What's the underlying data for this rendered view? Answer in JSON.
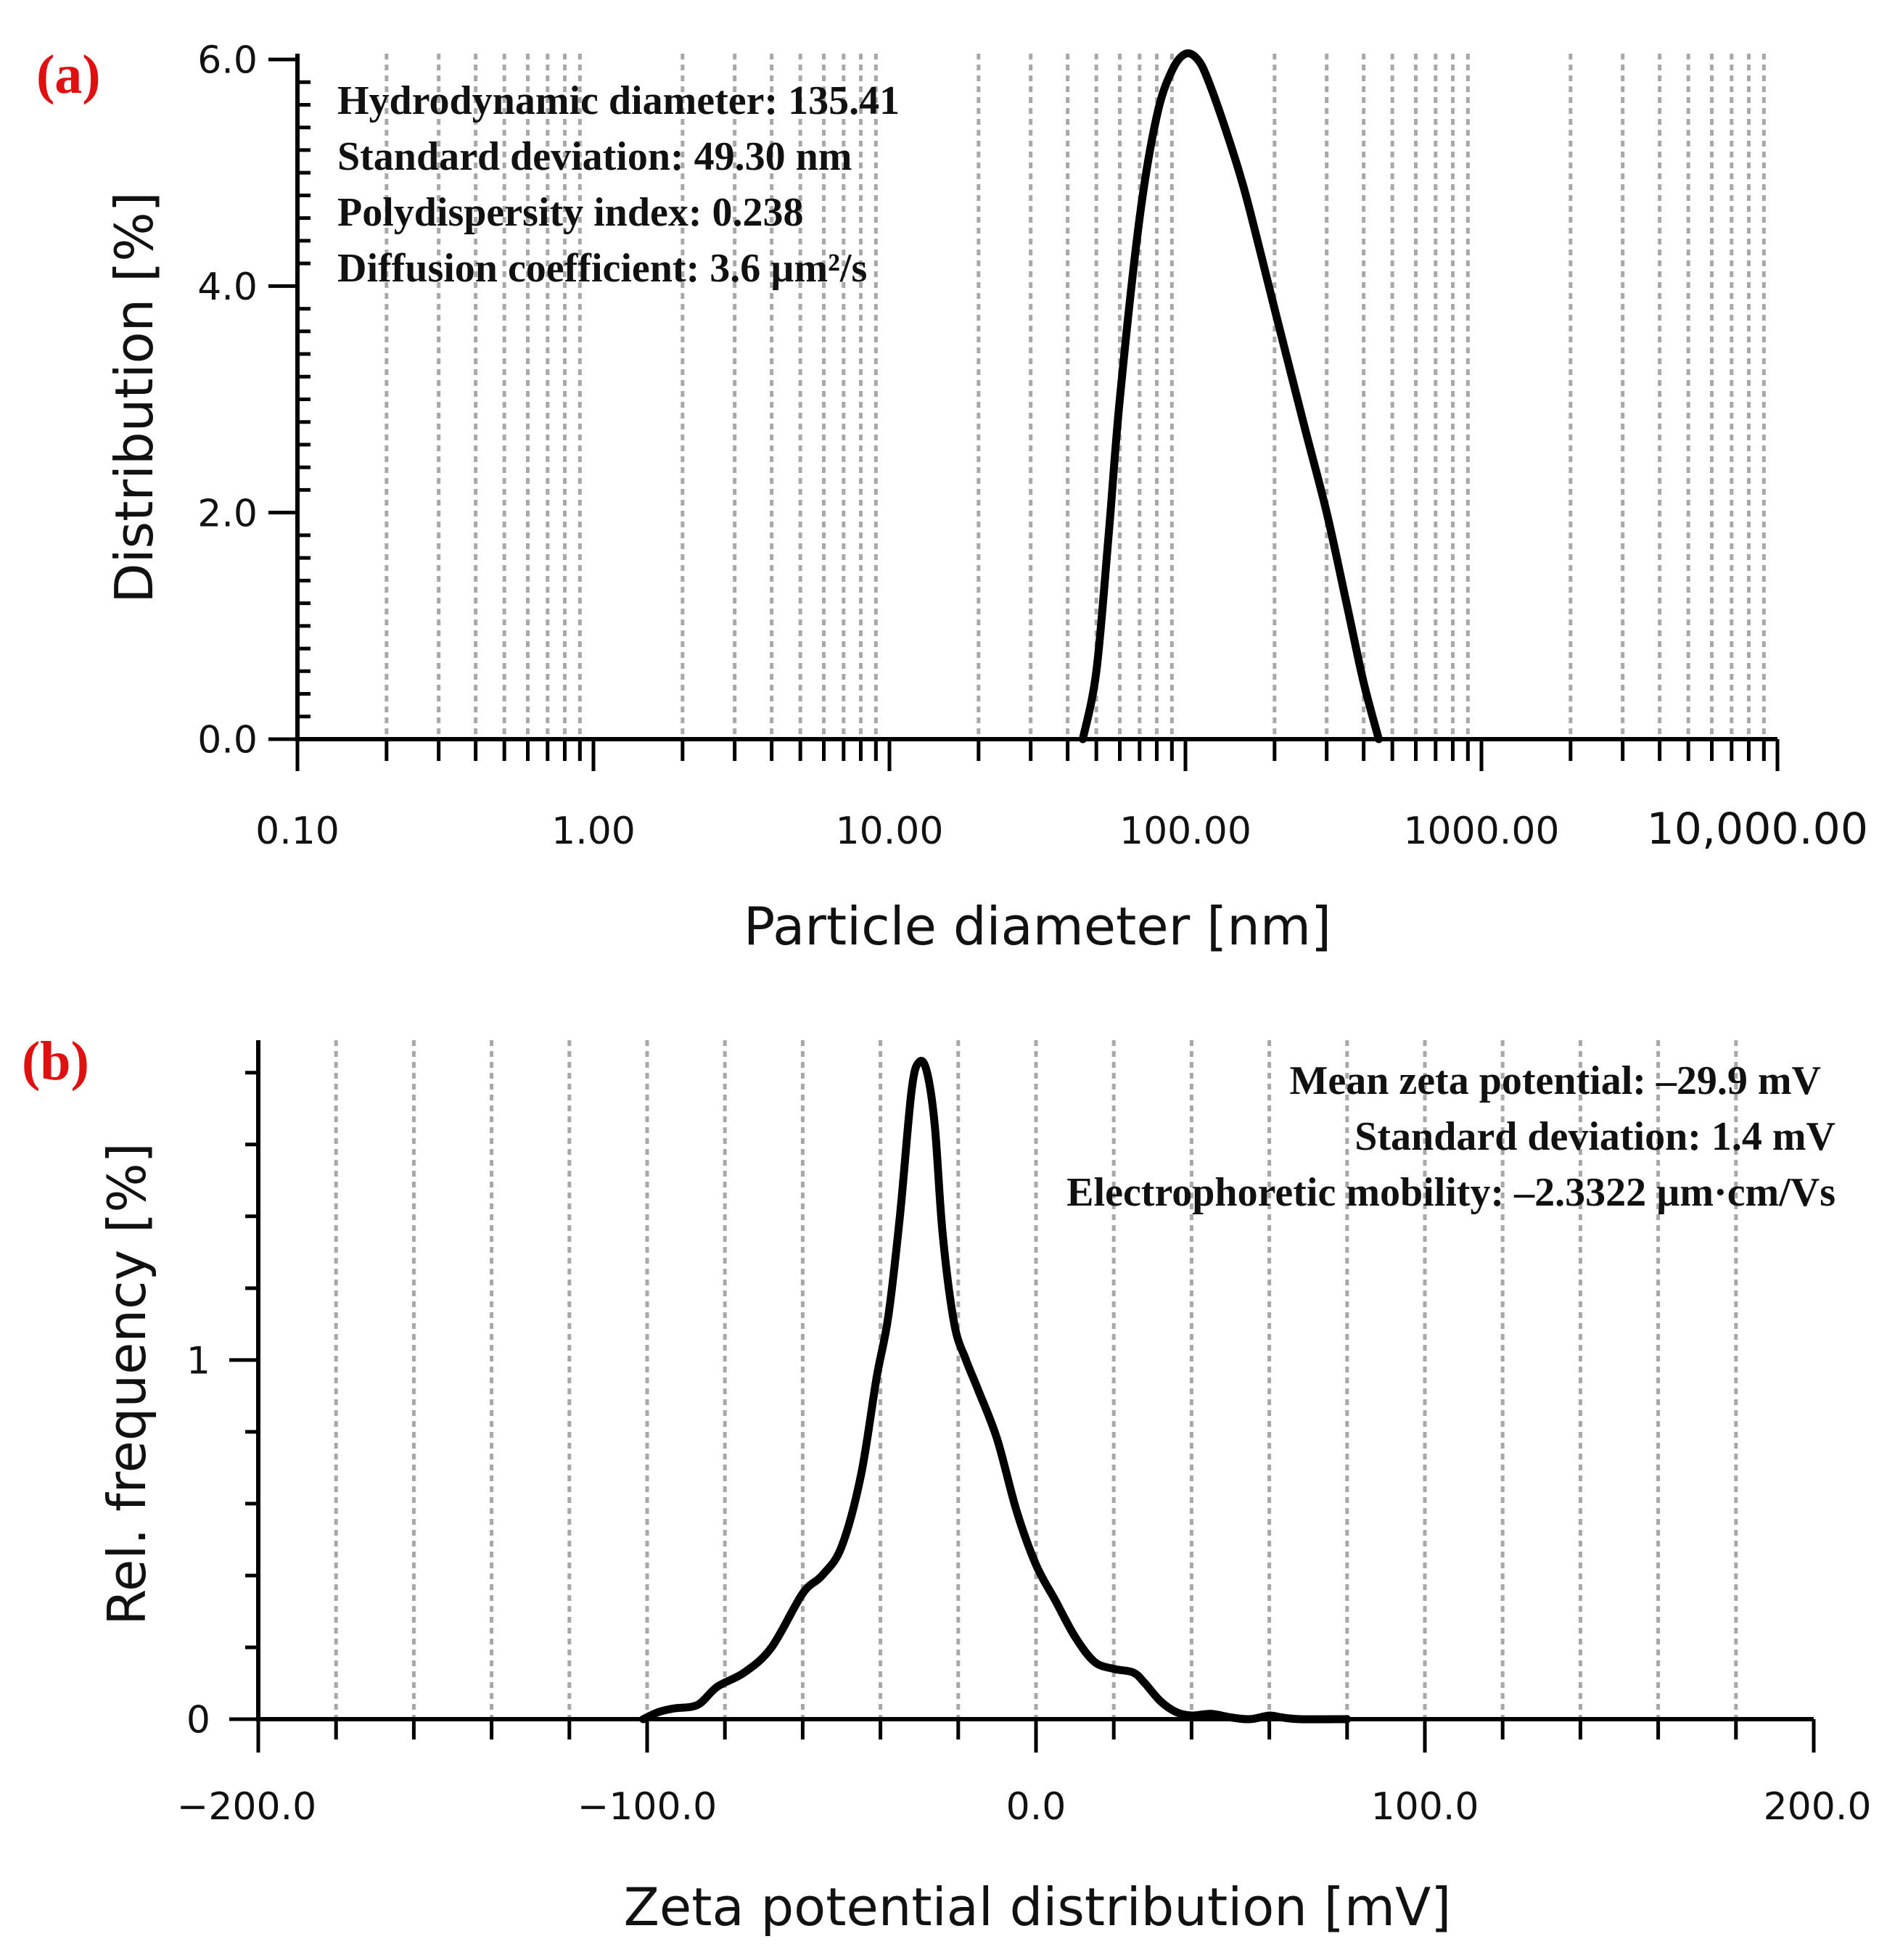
{
  "chart_data": [
    {
      "panel_label": "(a)",
      "type": "line",
      "x_scale": "log",
      "xlabel": "Particle diameter [nm]",
      "ylabel": "Distribution [%]",
      "xlim": [
        0.1,
        10000
      ],
      "ylim": [
        0,
        6.0
      ],
      "x_tick_labels": [
        "0.10",
        "1.00",
        "10.00",
        "100.00",
        "1000.00",
        "10,000.00"
      ],
      "x_tick_values": [
        0.1,
        1,
        10,
        100,
        1000,
        10000
      ],
      "y_tick_labels": [
        "0.0",
        "2.0",
        "4.0",
        "6.0"
      ],
      "y_tick_values": [
        0,
        2,
        4,
        6
      ],
      "grid": "vertical dotted",
      "annotations": [
        "Hydrodynamic diameter: 135.41",
        "Standard deviation: 49.30 nm",
        "Polydispersity index: 0.238",
        "Diffusion coefficient: 3.6 µm²/s"
      ],
      "series": [
        {
          "name": "distribution",
          "x": [
            45,
            50,
            55,
            60,
            70,
            80,
            90,
            100,
            110,
            120,
            140,
            160,
            200,
            250,
            300,
            350,
            400,
            450
          ],
          "y": [
            0.0,
            0.6,
            1.8,
            3.0,
            4.6,
            5.5,
            5.9,
            6.05,
            6.0,
            5.8,
            5.3,
            4.8,
            3.8,
            2.8,
            2.0,
            1.2,
            0.5,
            0.0
          ]
        }
      ]
    },
    {
      "panel_label": "(b)",
      "type": "line",
      "xlabel": "Zeta potential distribution [mV]",
      "ylabel": "Rel. frequency [%]",
      "xlim": [
        -200,
        200
      ],
      "ylim": [
        0,
        1.85
      ],
      "x_tick_labels": [
        "−200.0",
        "−100.0",
        "0.0",
        "100.0",
        "200.0"
      ],
      "x_tick_values": [
        -200,
        -100,
        0,
        100,
        200
      ],
      "y_tick_labels": [
        "0",
        "1"
      ],
      "y_tick_values": [
        0,
        1
      ],
      "grid": "vertical dotted",
      "annotations": [
        "Mean zeta potential: –29.9 mV",
        "Standard deviation: 1.4 mV",
        "Electrophoretic mobility: –2.3322 µm·cm/Vs"
      ],
      "series": [
        {
          "name": "zeta",
          "x": [
            -101,
            -97,
            -93,
            -87,
            -82,
            -75,
            -68,
            -60,
            -55,
            -50,
            -45,
            -41,
            -38,
            -35,
            -32,
            -30,
            -28,
            -26,
            -24,
            -21,
            -18,
            -15,
            -10,
            -5,
            0,
            5,
            10,
            15,
            20,
            25,
            28,
            32,
            36,
            40,
            45,
            50,
            55,
            60,
            63,
            68,
            80
          ],
          "y": [
            0.0,
            0.02,
            0.03,
            0.04,
            0.09,
            0.13,
            0.2,
            0.35,
            0.4,
            0.48,
            0.68,
            0.95,
            1.12,
            1.4,
            1.75,
            1.83,
            1.8,
            1.65,
            1.35,
            1.1,
            1.0,
            0.92,
            0.78,
            0.58,
            0.43,
            0.33,
            0.23,
            0.16,
            0.14,
            0.13,
            0.1,
            0.05,
            0.02,
            0.01,
            0.015,
            0.005,
            0.0,
            0.01,
            0.005,
            0.0,
            0.0
          ]
        }
      ]
    }
  ]
}
